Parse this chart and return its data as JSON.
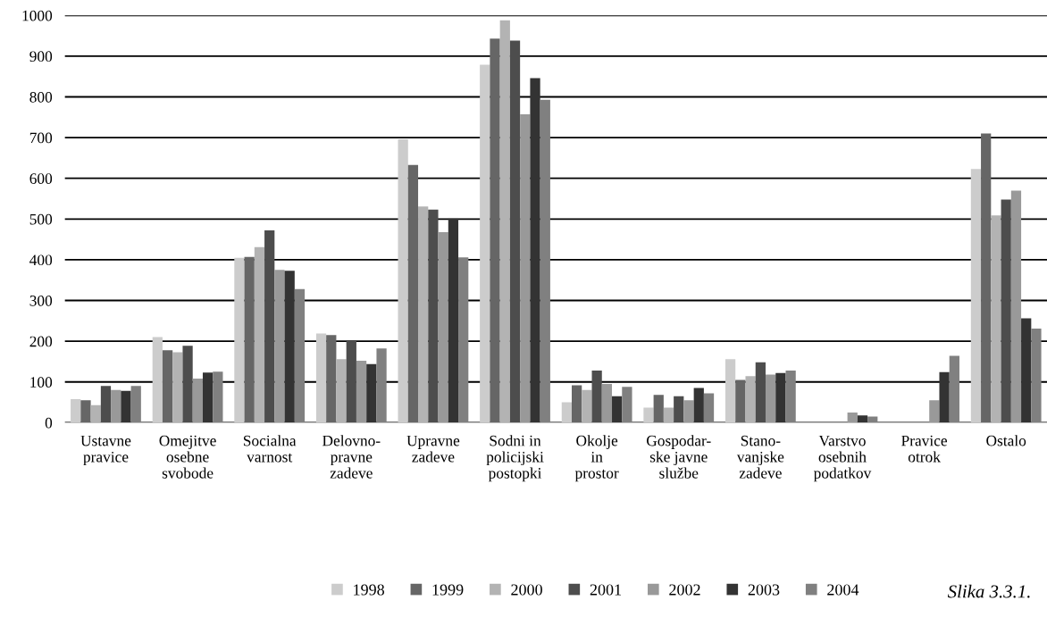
{
  "chart_data": {
    "type": "bar",
    "categories": [
      "Ustavne\npravice",
      "Omejitve\nosebne\nsvobode",
      "Socialna\nvarnost",
      "Delovno-\npravne\nzadeve",
      "Upravne\nzadeve",
      "Sodni in\npolicijski\npostopki",
      "Okolje\nin\nprostor",
      "Gospodar-\nske javne\nslužbe",
      "Stano-\nvanjske\nzadeve",
      "Varstvo\nosebnih\npodatkov",
      "Pravice\notrok",
      "Ostalo"
    ],
    "series": [
      {
        "name": "1998",
        "color": "#cccccc",
        "values": [
          58,
          210,
          405,
          219,
          696,
          879,
          50,
          37,
          156,
          null,
          null,
          623
        ]
      },
      {
        "name": "1999",
        "color": "#666666",
        "values": [
          55,
          178,
          407,
          215,
          633,
          943,
          92,
          68,
          105,
          null,
          null,
          710
        ]
      },
      {
        "name": "2000",
        "color": "#b3b3b3",
        "values": [
          43,
          173,
          431,
          156,
          531,
          988,
          80,
          37,
          114,
          null,
          null,
          509
        ]
      },
      {
        "name": "2001",
        "color": "#4d4d4d",
        "values": [
          90,
          189,
          472,
          200,
          523,
          938,
          128,
          65,
          148,
          null,
          null,
          548
        ]
      },
      {
        "name": "2002",
        "color": "#999999",
        "values": [
          80,
          108,
          375,
          152,
          468,
          757,
          95,
          55,
          118,
          25,
          55,
          570
        ]
      },
      {
        "name": "2003",
        "color": "#333333",
        "values": [
          78,
          123,
          373,
          144,
          501,
          846,
          65,
          85,
          122,
          18,
          124,
          256
        ]
      },
      {
        "name": "2004",
        "color": "#808080",
        "values": [
          90,
          125,
          328,
          182,
          406,
          793,
          88,
          72,
          128,
          15,
          164,
          231
        ]
      }
    ],
    "ylim": [
      0,
      1000
    ],
    "yticks": [
      0,
      100,
      200,
      300,
      400,
      500,
      600,
      700,
      800,
      900,
      1000
    ],
    "grid": "y",
    "legend": "bottom",
    "annotations": [
      "Slika 3.3.1."
    ]
  }
}
